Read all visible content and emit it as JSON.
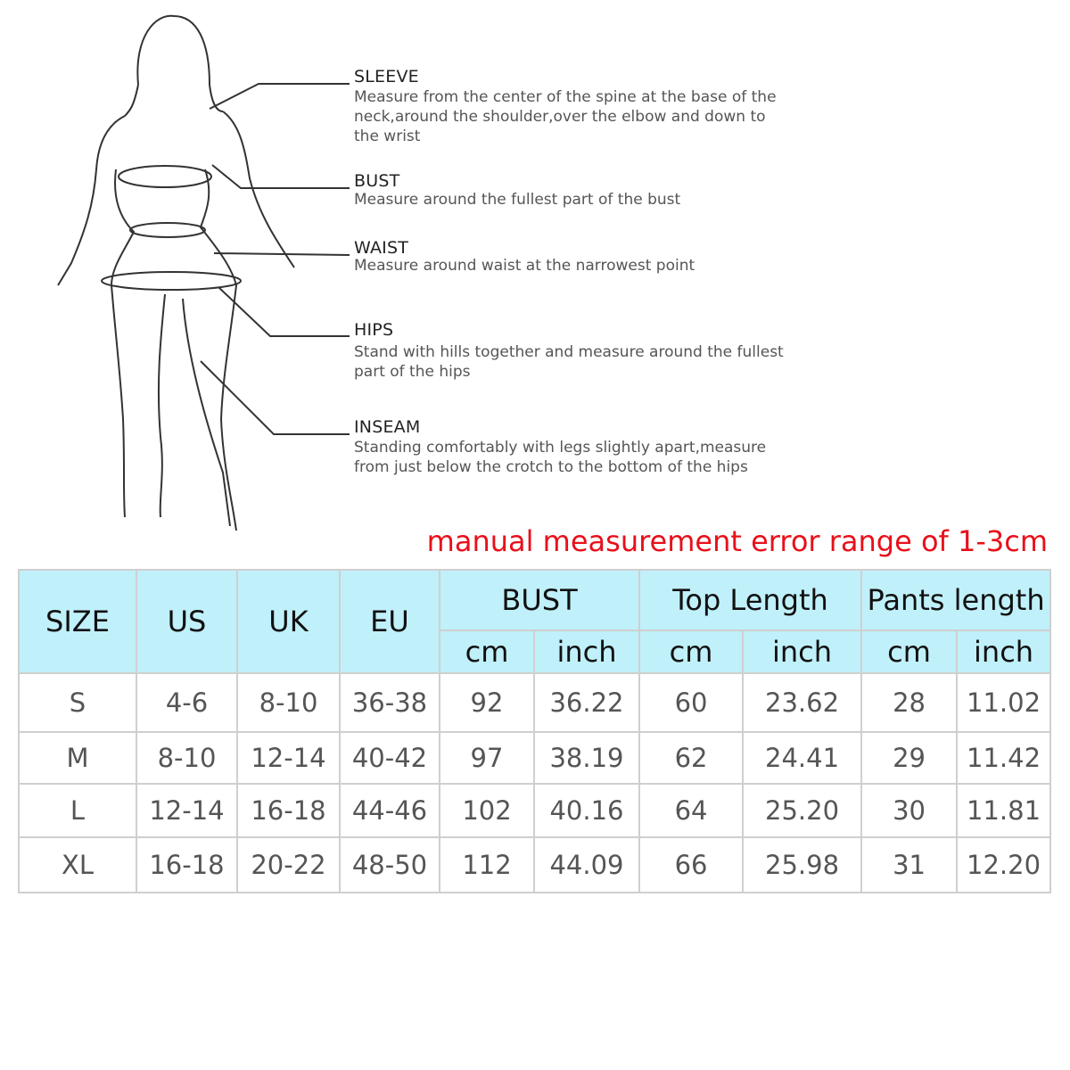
{
  "guide": [
    {
      "title": "SLEEVE",
      "desc": [
        "Measure from the center of the spine at the base of the",
        "neck,around the shoulder,over the elbow and down to",
        "the wrist"
      ]
    },
    {
      "title": "BUST",
      "desc": [
        "Measure around the fullest part of the bust"
      ]
    },
    {
      "title": "WAIST",
      "desc": [
        "Measure around waist at the narrowest point"
      ]
    },
    {
      "title": "HIPS",
      "desc": [
        "Stand with hills together and measure around the fullest",
        "part of the hips"
      ]
    },
    {
      "title": "INSEAM",
      "desc": [
        "Standing comfortably with legs slightly apart,measure",
        "from just below the crotch to the bottom of the hips"
      ]
    }
  ],
  "note": "manual measurement error range of 1-3cm",
  "table": {
    "headers": {
      "size": "SIZE",
      "us": "US",
      "uk": "UK",
      "eu": "EU",
      "bust": "BUST",
      "top": "Top Length",
      "pants": "Pants length",
      "cm": "cm",
      "inch": "inch"
    },
    "rows": [
      [
        "S",
        "4-6",
        "8-10",
        "36-38",
        "92",
        "36.22",
        "60",
        "23.62",
        "28",
        "11.02"
      ],
      [
        "M",
        "8-10",
        "12-14",
        "40-42",
        "97",
        "38.19",
        "62",
        "24.41",
        "29",
        "11.42"
      ],
      [
        "L",
        "12-14",
        "16-18",
        "44-46",
        "102",
        "40.16",
        "64",
        "25.20",
        "30",
        "11.81"
      ],
      [
        "XL",
        "16-18",
        "20-22",
        "48-50",
        "112",
        "44.09",
        "66",
        "25.98",
        "31",
        "12.20"
      ]
    ]
  },
  "colors": {
    "header_bg": "#c0f0fa",
    "note": "#e8101a"
  }
}
